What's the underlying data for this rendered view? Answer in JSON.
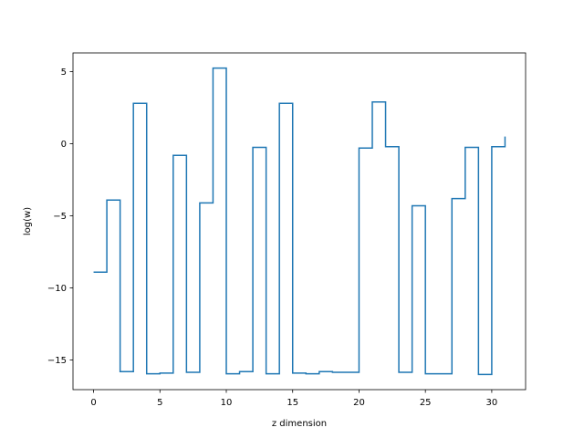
{
  "chart_data": {
    "type": "line",
    "drawstyle": "steps-post",
    "title": "",
    "xlabel": "z dimension",
    "ylabel": "log(w)",
    "xlim": [
      -1.55,
      32.55
    ],
    "ylim": [
      -17.05,
      6.3
    ],
    "xticks": [
      0,
      5,
      10,
      15,
      20,
      25,
      30
    ],
    "yticks": [
      -15,
      -10,
      -5,
      0,
      5
    ],
    "ytick_labels": [
      "−15",
      "−10",
      "−5",
      "0",
      "5"
    ],
    "grid": false,
    "legend": null,
    "line_color": "#1f77b4",
    "series": [
      {
        "x": [
          0,
          1,
          2,
          3,
          4,
          5,
          6,
          7,
          8,
          9,
          10,
          11,
          12,
          13,
          14,
          15,
          16,
          17,
          18,
          19,
          20,
          21,
          22,
          23,
          24,
          25,
          26,
          27,
          28,
          29,
          30,
          31
        ],
        "values": [
          -8.9,
          -3.9,
          -15.8,
          2.8,
          -15.95,
          -15.9,
          -0.8,
          -15.85,
          -4.1,
          5.25,
          -15.95,
          -15.8,
          -0.25,
          -15.95,
          2.8,
          -15.9,
          -15.95,
          -15.8,
          -15.85,
          -15.85,
          -0.3,
          2.9,
          -0.2,
          -15.85,
          -4.3,
          -15.95,
          -15.95,
          -3.8,
          -0.25,
          -16.0,
          -0.2,
          0.5
        ]
      }
    ]
  }
}
